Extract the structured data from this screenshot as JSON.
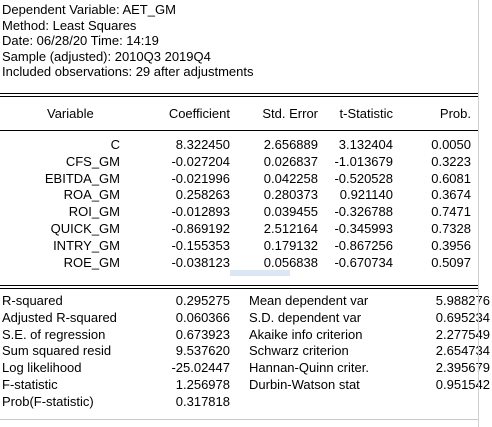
{
  "header": {
    "dependent_variable": "Dependent Variable: AET_GM",
    "method": "Method: Least Squares",
    "date": "Date: 06/28/20   Time: 14:19",
    "sample": "Sample (adjusted): 2010Q3 2019Q4",
    "observations": "Included observations: 29 after adjustments"
  },
  "columns": {
    "variable": "Variable",
    "coefficient": "Coefficient",
    "std_error": "Std. Error",
    "t_statistic": "t-Statistic",
    "prob": "Prob."
  },
  "rows": [
    {
      "variable": "C",
      "coefficient": "8.322450",
      "std_error": "2.656889",
      "t_statistic": "3.132404",
      "prob": "0.0050"
    },
    {
      "variable": "CFS_GM",
      "coefficient": "-0.027204",
      "std_error": "0.026837",
      "t_statistic": "-1.013679",
      "prob": "0.3223"
    },
    {
      "variable": "EBITDA_GM",
      "coefficient": "-0.021996",
      "std_error": "0.042258",
      "t_statistic": "-0.520528",
      "prob": "0.6081"
    },
    {
      "variable": "ROA_GM",
      "coefficient": "0.258263",
      "std_error": "0.280373",
      "t_statistic": "0.921140",
      "prob": "0.3674"
    },
    {
      "variable": "ROI_GM",
      "coefficient": "-0.012893",
      "std_error": "0.039455",
      "t_statistic": "-0.326788",
      "prob": "0.7471"
    },
    {
      "variable": "QUICK_GM",
      "coefficient": "-0.869192",
      "std_error": "2.512164",
      "t_statistic": "-0.345993",
      "prob": "0.7328"
    },
    {
      "variable": "INTRY_GM",
      "coefficient": "-0.155353",
      "std_error": "0.179132",
      "t_statistic": "-0.867256",
      "prob": "0.3956"
    },
    {
      "variable": "ROE_GM",
      "coefficient": "-0.038123",
      "std_error": "0.056838",
      "t_statistic": "-0.670734",
      "prob": "0.5097"
    }
  ],
  "stats": [
    {
      "label_left": "R-squared",
      "value_left": "0.295275",
      "label_right": "Mean dependent var",
      "value_right": "5.988276"
    },
    {
      "label_left": "Adjusted R-squared",
      "value_left": "0.060366",
      "label_right": "S.D. dependent var",
      "value_right": "0.695234"
    },
    {
      "label_left": "S.E. of regression",
      "value_left": "0.673923",
      "label_right": "Akaike info criterion",
      "value_right": "2.277549"
    },
    {
      "label_left": "Sum squared resid",
      "value_left": "9.537620",
      "label_right": "Schwarz criterion",
      "value_right": "2.654734"
    },
    {
      "label_left": "Log likelihood",
      "value_left": "-25.02447",
      "label_right": "Hannan-Quinn criter.",
      "value_right": "2.395679"
    },
    {
      "label_left": "F-statistic",
      "value_left": "1.256978",
      "label_right": "Durbin-Watson stat",
      "value_right": "0.951542"
    },
    {
      "label_left": "Prob(F-statistic)",
      "value_left": "0.317818",
      "label_right": "",
      "value_right": ""
    }
  ]
}
